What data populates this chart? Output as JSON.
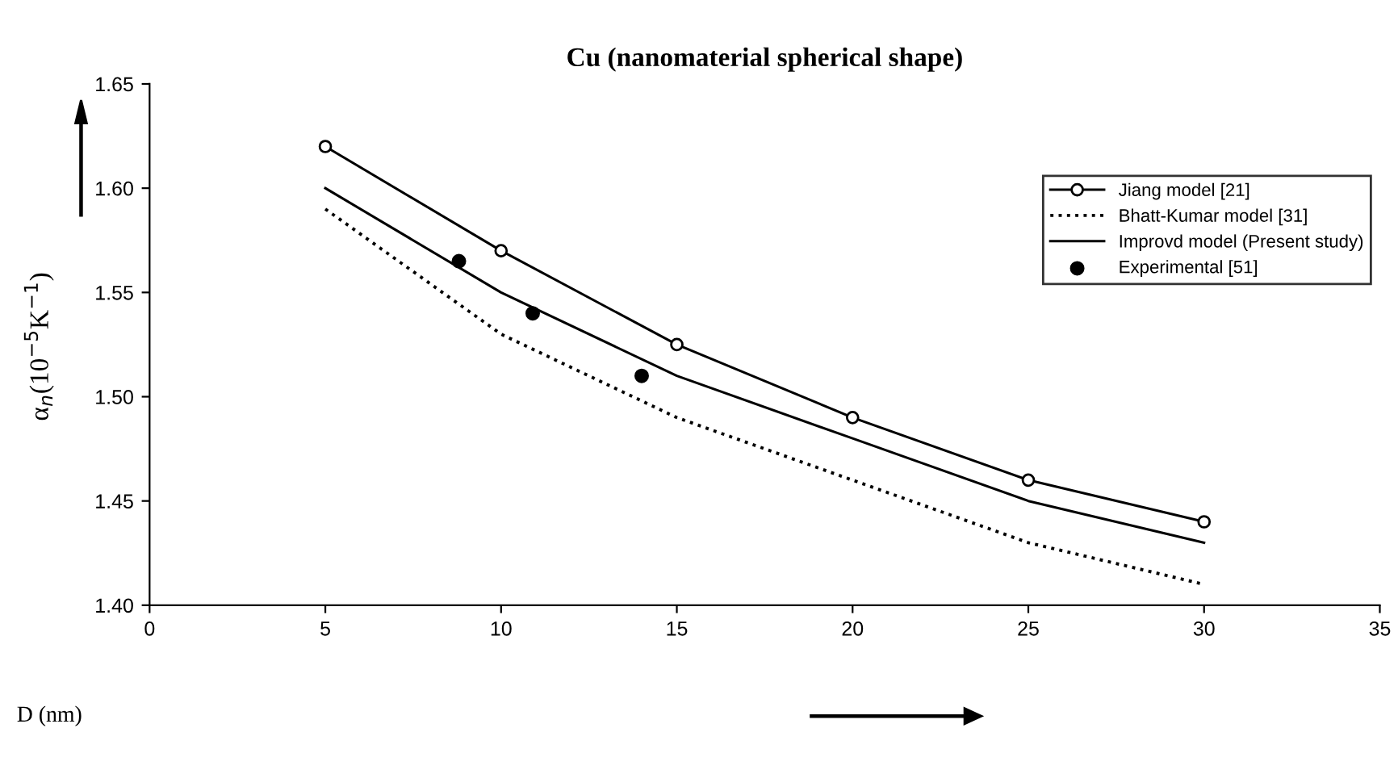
{
  "chart_data": {
    "type": "line",
    "title": "Cu (nanomaterial spherical shape)",
    "xlabel": "D (nm)",
    "ylabel": "α$_{n}$(10$^{−5}$K$^{−1}$)",
    "xlim": [
      0,
      35
    ],
    "xticks": [
      0,
      5,
      10,
      15,
      20,
      25,
      30,
      35
    ],
    "ylim": [
      1.4,
      1.65
    ],
    "yticks": [
      {
        "value": 1.4,
        "label": "1.40"
      },
      {
        "value": 1.45,
        "label": "1.45"
      },
      {
        "value": 1.5,
        "label": "1.50"
      },
      {
        "value": 1.55,
        "label": "1.55"
      },
      {
        "value": 1.6,
        "label": "1.60"
      },
      {
        "value": 1.65,
        "label": "1.65"
      }
    ],
    "grid": false,
    "legend": "right",
    "series": [
      {
        "name": "Jiang model [21]",
        "color": "#000000",
        "marker": "circle",
        "line_style": "solid",
        "x": [
          5,
          10,
          15,
          20,
          25,
          30
        ],
        "values": [
          1.62,
          1.57,
          1.525,
          1.49,
          1.46,
          1.44
        ]
      },
      {
        "name": "Bhatt-Kumar model [31]",
        "color": "#000000",
        "marker": "none",
        "line_style": "dotted",
        "x": [
          5,
          10,
          15,
          20,
          25,
          30
        ],
        "values": [
          1.59,
          1.53,
          1.49,
          1.46,
          1.43,
          1.41
        ]
      },
      {
        "name": "Improvd model (Present study)",
        "color": "#000000",
        "marker": "none",
        "line_style": "solid",
        "x": [
          5,
          10,
          15,
          20,
          25,
          30
        ],
        "values": [
          1.6,
          1.55,
          1.51,
          1.48,
          1.45,
          1.43
        ]
      },
      {
        "name": "Experimental [51]",
        "type": "scatter",
        "color": "#000000",
        "marker": "circle",
        "x": [
          8.8,
          10.9,
          14
        ],
        "values": [
          1.565,
          1.54,
          1.51
        ]
      }
    ]
  }
}
